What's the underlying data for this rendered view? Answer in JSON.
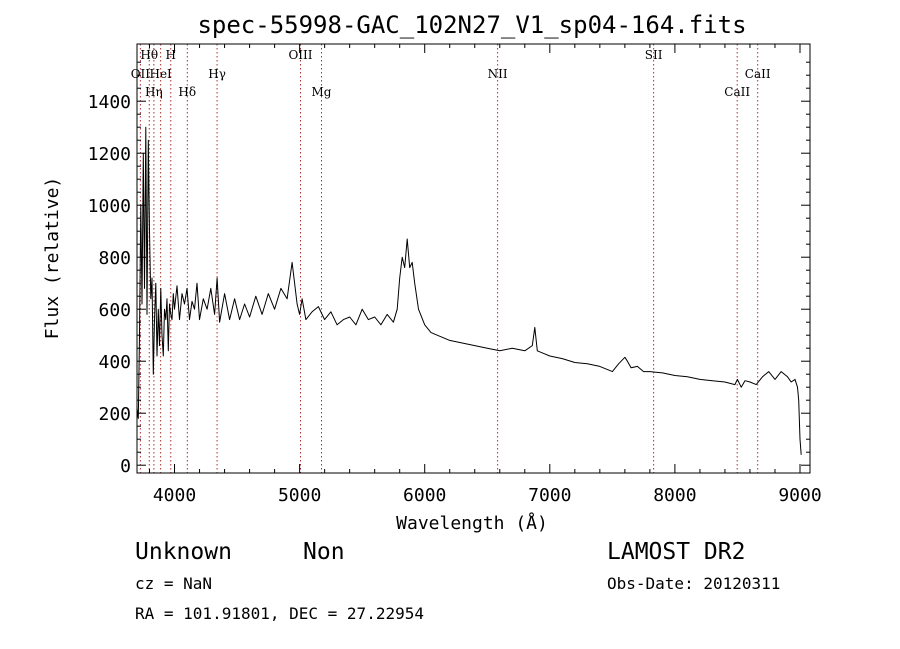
{
  "chart_data": {
    "type": "line",
    "title": "spec-55998-GAC_102N27_V1_sp04-164.fits",
    "xlabel": "Wavelength (Å)",
    "ylabel": "Flux (relative)",
    "xlim": [
      3700,
      9080
    ],
    "ylim": [
      -30,
      1620
    ],
    "xticks": [
      4000,
      5000,
      6000,
      7000,
      8000,
      9000
    ],
    "yticks": [
      0,
      200,
      400,
      600,
      800,
      1000,
      1200,
      1400
    ],
    "grid": false,
    "series": [
      {
        "x": [
          3700,
          3710,
          3720,
          3730,
          3740,
          3750,
          3760,
          3770,
          3780,
          3790,
          3800,
          3810,
          3820,
          3830,
          3840,
          3850,
          3860,
          3870,
          3880,
          3890,
          3900,
          3910,
          3920,
          3930,
          3940,
          3950,
          3960,
          3970,
          3980,
          3990,
          4000,
          4020,
          4040,
          4060,
          4080,
          4100,
          4120,
          4140,
          4160,
          4180,
          4200,
          4230,
          4260,
          4290,
          4320,
          4340,
          4360,
          4400,
          4440,
          4480,
          4520,
          4560,
          4600,
          4650,
          4700,
          4750,
          4800,
          4850,
          4900,
          4940,
          4960,
          4980,
          5000,
          5020,
          5050,
          5100,
          5150,
          5200,
          5250,
          5300,
          5350,
          5400,
          5450,
          5500,
          5550,
          5600,
          5650,
          5700,
          5750,
          5780,
          5800,
          5820,
          5840,
          5860,
          5880,
          5900,
          5920,
          5950,
          6000,
          6050,
          6100,
          6150,
          6200,
          6300,
          6400,
          6500,
          6600,
          6700,
          6800,
          6860,
          6880,
          6900,
          6950,
          7000,
          7100,
          7200,
          7300,
          7400,
          7500,
          7550,
          7600,
          7620,
          7650,
          7700,
          7750,
          7800,
          7900,
          8000,
          8100,
          8200,
          8300,
          8400,
          8480,
          8500,
          8530,
          8560,
          8600,
          8650,
          8700,
          8750,
          8800,
          8850,
          8900,
          8930,
          8960,
          8980,
          8990,
          9000,
          9010
        ],
        "y": [
          220,
          180,
          500,
          1000,
          620,
          1200,
          680,
          1300,
          580,
          1250,
          900,
          640,
          720,
          350,
          560,
          700,
          420,
          600,
          460,
          680,
          500,
          420,
          600,
          560,
          640,
          440,
          620,
          580,
          560,
          660,
          600,
          690,
          560,
          660,
          620,
          680,
          560,
          630,
          600,
          700,
          560,
          640,
          600,
          680,
          580,
          720,
          550,
          660,
          560,
          640,
          560,
          620,
          570,
          650,
          580,
          660,
          600,
          680,
          640,
          780,
          700,
          620,
          580,
          640,
          560,
          590,
          610,
          560,
          590,
          540,
          560,
          570,
          540,
          600,
          560,
          570,
          540,
          580,
          550,
          600,
          720,
          800,
          760,
          870,
          760,
          780,
          700,
          600,
          540,
          510,
          500,
          490,
          480,
          470,
          460,
          450,
          440,
          450,
          440,
          460,
          530,
          440,
          430,
          420,
          410,
          395,
          390,
          380,
          360,
          390,
          415,
          400,
          375,
          380,
          360,
          360,
          355,
          345,
          340,
          330,
          325,
          320,
          310,
          330,
          300,
          325,
          320,
          310,
          340,
          360,
          330,
          360,
          340,
          320,
          330,
          300,
          250,
          100,
          40
        ]
      }
    ],
    "annotations": [
      {
        "label": "Hθ",
        "x": 3798,
        "row": 1
      },
      {
        "label": "H",
        "x": 3970,
        "row": 1
      },
      {
        "label": "OII",
        "x": 3727,
        "row": 2
      },
      {
        "label": "HeI",
        "x": 3889,
        "row": 2
      },
      {
        "label": "Hη",
        "x": 3835,
        "row": 3
      },
      {
        "label": "Hδ",
        "x": 4102,
        "row": 3
      },
      {
        "label": "Hγ",
        "x": 4340,
        "row": 2
      },
      {
        "label": "OIII",
        "x": 5007,
        "row": 1
      },
      {
        "label": "Mg",
        "x": 5175,
        "row": 3
      },
      {
        "label": "NII",
        "x": 6583,
        "row": 2
      },
      {
        "label": "SII",
        "x": 7830,
        "row": 1
      },
      {
        "label": "CaII",
        "x": 8498,
        "row": 3
      },
      {
        "label": "CaII",
        "x": 8662,
        "row": 2
      }
    ]
  },
  "footer": {
    "object_class": "Unknown",
    "subclass": "Non",
    "cz": "cz = NaN",
    "coords": "RA = 101.91801, DEC =  27.22954",
    "survey": "LAMOST DR2",
    "obs_date": "Obs-Date: 20120311"
  }
}
